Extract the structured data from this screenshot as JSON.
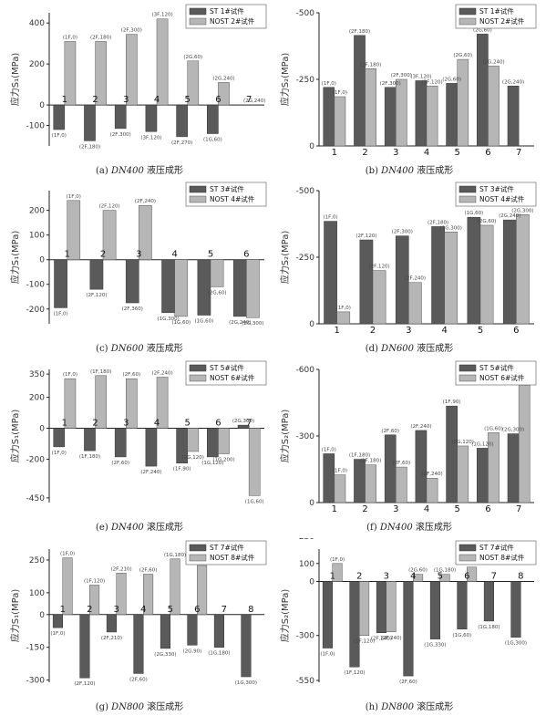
{
  "colors": {
    "st": "#5a5a5a",
    "nost": "#b6b6b6",
    "axis": "#222222",
    "text": "#333333"
  },
  "charts": [
    {
      "id": "a",
      "caption_prefix": "(a)",
      "caption_dn": "DN400",
      "caption_rest": " 液压成形",
      "ylabel": "应力S₁(MPa)",
      "ylim": [
        -200,
        450
      ],
      "yticks": [
        -100,
        0,
        200,
        400
      ],
      "tick_labels": [
        "-100",
        "0",
        "200",
        "400"
      ],
      "categories": [
        "1",
        "2",
        "3",
        "4",
        "5",
        "6",
        "7"
      ],
      "series": [
        {
          "name": "ST   1#试件",
          "values": [
            -120,
            -175,
            -115,
            -130,
            -155,
            -140,
            0
          ]
        },
        {
          "name": "NOST  2#试件",
          "values": [
            310,
            310,
            345,
            420,
            215,
            110,
            0
          ]
        }
      ],
      "st_labels": [
        "(1F,0)",
        "(2F,180)",
        "(2F,300)",
        "(3F,120)",
        "(2F,270)",
        "(1G,60)",
        ""
      ],
      "nost_labels": [
        "(1F,0)",
        "(2F,180)",
        "(2F,300)",
        "(3F,120)",
        "(2G,60)",
        "(2G,240)",
        "(2G,240)"
      ]
    },
    {
      "id": "b",
      "caption_prefix": "(b)",
      "caption_dn": "DN400",
      "caption_rest": " 液压成形",
      "ylabel": "应力S₂(MPa)",
      "ylim": [
        0,
        -500
      ],
      "yticks": [
        0,
        -250,
        -500
      ],
      "tick_labels": [
        "0",
        "-250",
        "-500"
      ],
      "categories": [
        "1",
        "2",
        "3",
        "4",
        "5",
        "6",
        "7"
      ],
      "series": [
        {
          "name": "ST   1#试件",
          "values": [
            -220,
            -415,
            -220,
            -245,
            -235,
            -420,
            -225
          ]
        },
        {
          "name": "NOST  2#试件",
          "values": [
            -185,
            -290,
            -250,
            -225,
            -325,
            -300,
            0
          ]
        }
      ],
      "st_labels": [
        "(1F,0)",
        "(2F,180)",
        "(2F,300)",
        "(3F,120)",
        "(2G,60)",
        "(2G,60)",
        "(2G,240)"
      ],
      "nost_labels": [
        "(1F,0)",
        "(2F,180)",
        "(2F,300)",
        "(3F,120)",
        "(2G,60)",
        "(2G,240)",
        ""
      ]
    },
    {
      "id": "c",
      "caption_prefix": "(c)",
      "caption_dn": "DN600",
      "caption_rest": " 液压成形",
      "ylabel": "应力S₁(MPa)",
      "ylim": [
        -260,
        280
      ],
      "yticks": [
        -200,
        -100,
        0,
        100,
        200
      ],
      "tick_labels": [
        "-200",
        "-100",
        "0",
        "100",
        "200"
      ],
      "categories": [
        "1",
        "2",
        "3",
        "4",
        "5",
        "6"
      ],
      "series": [
        {
          "name": "ST   3#试件",
          "values": [
            -195,
            -120,
            -175,
            -215,
            -225,
            -230
          ]
        },
        {
          "name": "NOST  4#试件",
          "values": [
            240,
            200,
            220,
            -230,
            -110,
            -235
          ]
        }
      ],
      "st_labels": [
        "(1F,0)",
        "(2F,120)",
        "(2F,360)",
        "(1G,300)",
        "(1G,60)",
        "(2G,240)"
      ],
      "nost_labels": [
        "(1F,0)",
        "(2F,120)",
        "(2F,240)",
        "(1G,60)",
        "(2G,60)",
        "(2G,300)"
      ]
    },
    {
      "id": "d",
      "caption_prefix": "(d)",
      "caption_dn": "DN600",
      "caption_rest": " 液压成形",
      "ylabel": "应力S₂(MPa)",
      "ylim": [
        0,
        -500
      ],
      "yticks": [
        0,
        -250,
        -500
      ],
      "tick_labels": [
        "0",
        "-250",
        "-500"
      ],
      "categories": [
        "1",
        "2",
        "3",
        "4",
        "5",
        "6"
      ],
      "series": [
        {
          "name": "ST   3#试件",
          "values": [
            -385,
            -315,
            -330,
            -365,
            -400,
            -390
          ]
        },
        {
          "name": "NOST  4#试件",
          "values": [
            -45,
            -200,
            -155,
            -345,
            -370,
            -410
          ]
        }
      ],
      "st_labels": [
        "(1F,0)",
        "(2F,120)",
        "(2F,300)",
        "(2F,180)",
        "(1G,60)",
        "(2G,240)"
      ],
      "nost_labels": [
        "(1F,0)",
        "(2F,120)",
        "(2F,240)",
        "(1G,300)",
        "(2G,60)",
        "(2G,300)"
      ]
    },
    {
      "id": "e",
      "caption_prefix": "(e)",
      "caption_dn": "DN400",
      "caption_rest": " 滚压成形",
      "ylabel": "应力S₁(MPa)",
      "ylim": [
        -480,
        380
      ],
      "yticks": [
        -450,
        -200,
        0,
        200,
        350
      ],
      "tick_labels": [
        "-450",
        "-200",
        "0",
        "200",
        "350"
      ],
      "categories": [
        "1",
        "2",
        "3",
        "4",
        "5",
        "6",
        "7"
      ],
      "series": [
        {
          "name": "ST   5#试件",
          "values": [
            -120,
            -145,
            -185,
            -245,
            -225,
            -185,
            20
          ]
        },
        {
          "name": "NOST  6#试件",
          "values": [
            320,
            340,
            320,
            330,
            -150,
            -165,
            -435
          ]
        }
      ],
      "st_labels": [
        "(1F,0)",
        "(1F,180)",
        "(2F,60)",
        "(2F,240)",
        "(1F,90)",
        "(1G,120)",
        "(2G,300)"
      ],
      "nost_labels": [
        "(1F,0)",
        "(1F,180)",
        "(2F,60)",
        "(2F,240)",
        "(2G,120)",
        "(1G,200)",
        "(1G,60)"
      ]
    },
    {
      "id": "f",
      "caption_prefix": "(f)",
      "caption_dn": "DN400",
      "caption_rest": " 滚压成形",
      "ylabel": "应力S₂(MPa)",
      "ylim": [
        0,
        -600
      ],
      "yticks": [
        0,
        -300,
        -600
      ],
      "tick_labels": [
        "0",
        "-300",
        "-600"
      ],
      "categories": [
        "1",
        "2",
        "3",
        "4",
        "5",
        "6",
        "7"
      ],
      "series": [
        {
          "name": "ST   5#试件",
          "values": [
            -220,
            -195,
            -305,
            -325,
            -435,
            -245,
            -310
          ]
        },
        {
          "name": "NOST  6#试件",
          "values": [
            -125,
            -170,
            -160,
            -110,
            -255,
            -315,
            -530
          ]
        }
      ],
      "st_labels": [
        "(1F,0)",
        "(1F,180)",
        "(2F,60)",
        "(2F,240)",
        "(1F,90)",
        "(1G,120)",
        "(2G,300)"
      ],
      "nost_labels": [
        "(1F,0)",
        "(1F,180)",
        "(2F,60)",
        "(2F,240)",
        "(2G,120)",
        "(1G,60)",
        "(1G,210)"
      ]
    },
    {
      "id": "g",
      "caption_prefix": "(g)",
      "caption_dn": "DN800",
      "caption_rest": " 滚压成形",
      "ylabel": "应力S₁(MPa)",
      "ylim": [
        -310,
        300
      ],
      "yticks": [
        -300,
        -150,
        0,
        100,
        250
      ],
      "tick_labels": [
        "-300",
        "-150",
        "0",
        "100",
        "250"
      ],
      "categories": [
        "1",
        "2",
        "3",
        "4",
        "5",
        "6",
        "7",
        "8"
      ],
      "series": [
        {
          "name": "ST   7#试件",
          "values": [
            -60,
            -290,
            -80,
            -270,
            -155,
            -140,
            -150,
            -285
          ]
        },
        {
          "name": "NOST  8#试件",
          "values": [
            260,
            135,
            190,
            185,
            255,
            225,
            0,
            0
          ]
        }
      ],
      "st_labels": [
        "(1F,0)",
        "(2F,120)",
        "(2F,210)",
        "(2F,60)",
        "(2G,330)",
        "(2G,90)",
        "(1G,180)",
        "(1G,300)"
      ],
      "nost_labels": [
        "(1F,0)",
        "(1F,120)",
        "(2F,210)",
        "(2F,60)",
        "(1G,180)",
        "(1G,300)",
        "",
        ""
      ]
    },
    {
      "id": "h",
      "caption_prefix": "(h)",
      "caption_dn": "DN800",
      "caption_rest": " 滚压成形",
      "ylabel": "应力S₂(MPa)",
      "ylim": [
        -560,
        180
      ],
      "yticks": [
        -550,
        -300,
        0,
        100,
        250
      ],
      "tick_labels": [
        "-550",
        "-300",
        "0",
        "100",
        "250"
      ],
      "categories": [
        "1",
        "2",
        "3",
        "4",
        "5",
        "6",
        "7",
        "8"
      ],
      "series": [
        {
          "name": "ST   7#试件",
          "values": [
            -370,
            -475,
            -285,
            -525,
            -320,
            -265,
            -220,
            -310
          ]
        },
        {
          "name": "NOST  8#试件",
          "values": [
            100,
            -300,
            -280,
            40,
            40,
            80,
            0,
            0
          ]
        }
      ],
      "st_labels": [
        "(1F,0)",
        "(1F,120)",
        "(2F,240)",
        "(2F,60)",
        "(1G,330)",
        "(1G,60)",
        "(1G,180)",
        "(1G,300)"
      ],
      "nost_labels": [
        "(1F,0)",
        "(1F,120)",
        "(2F,240)",
        "(2G,60)",
        "(1G,180)",
        "(2G,300)",
        "",
        ""
      ]
    }
  ]
}
